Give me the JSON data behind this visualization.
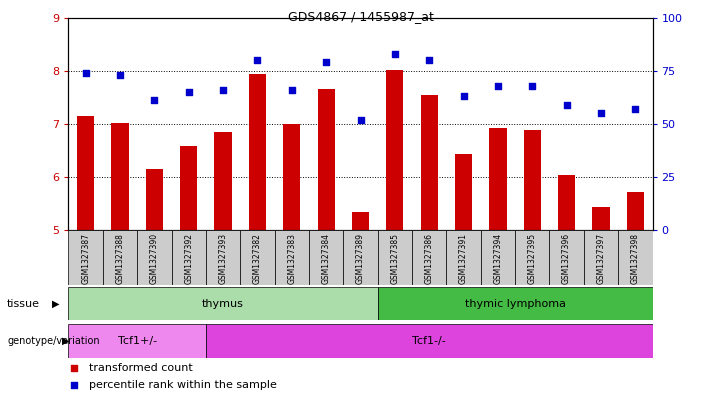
{
  "title": "GDS4867 / 1455987_at",
  "samples": [
    "GSM1327387",
    "GSM1327388",
    "GSM1327390",
    "GSM1327392",
    "GSM1327393",
    "GSM1327382",
    "GSM1327383",
    "GSM1327384",
    "GSM1327389",
    "GSM1327385",
    "GSM1327386",
    "GSM1327391",
    "GSM1327394",
    "GSM1327395",
    "GSM1327396",
    "GSM1327397",
    "GSM1327398"
  ],
  "transformed_count": [
    7.15,
    7.02,
    6.15,
    6.58,
    6.85,
    7.93,
    7.0,
    7.65,
    5.33,
    8.02,
    7.55,
    6.43,
    6.93,
    6.88,
    6.03,
    5.43,
    5.72
  ],
  "percentile_rank": [
    74,
    73,
    61,
    65,
    66,
    80,
    66,
    79,
    52,
    83,
    80,
    63,
    68,
    68,
    59,
    55,
    57
  ],
  "ylim_left": [
    5,
    9
  ],
  "ylim_right": [
    0,
    100
  ],
  "yticks_left": [
    5,
    6,
    7,
    8,
    9
  ],
  "yticks_right": [
    0,
    25,
    50,
    75,
    100
  ],
  "bar_color": "#cc0000",
  "dot_color": "#0000cc",
  "tissue_groups": [
    {
      "label": "thymus",
      "start": 0,
      "end": 9,
      "color": "#aaddaa"
    },
    {
      "label": "thymic lymphoma",
      "start": 9,
      "end": 17,
      "color": "#44bb44"
    }
  ],
  "genotype_groups": [
    {
      "label": "Tcf1+/-",
      "start": 0,
      "end": 4,
      "color": "#ee88ee"
    },
    {
      "label": "Tcf1-/-",
      "start": 4,
      "end": 17,
      "color": "#dd44dd"
    }
  ],
  "legend_items": [
    {
      "label": "transformed count",
      "color": "#cc0000"
    },
    {
      "label": "percentile rank within the sample",
      "color": "#0000cc"
    }
  ],
  "sample_bg_color": "#cccccc",
  "plot_bg_color": "#ffffff"
}
